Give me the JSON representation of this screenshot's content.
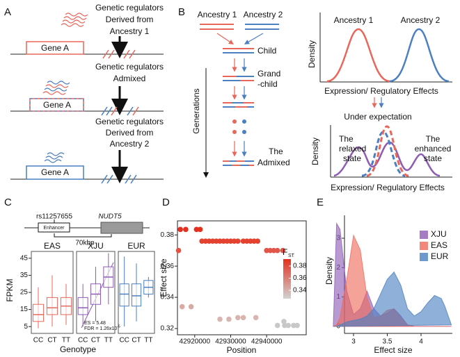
{
  "panels": {
    "A": {
      "label": "A",
      "rows": [
        {
          "regulator_text": [
            "Genetic regulators",
            "Derived from",
            "Ancestry 1"
          ],
          "gene": "Gene A"
        },
        {
          "regulator_text": [
            "Genetic regulators",
            "Admixed"
          ],
          "gene": "Gene A"
        },
        {
          "regulator_text": [
            "Genetic regulators",
            "Derived from",
            "Ancestry 2"
          ],
          "gene": "Gene A"
        }
      ]
    },
    "B": {
      "label": "B",
      "ancestry_1": "Ancestry 1",
      "ancestry_2": "Ancestry 2",
      "child": "Child",
      "grandchild": [
        "Grand",
        "-child"
      ],
      "admixed": [
        "The",
        "Admixed"
      ],
      "generations": "Generations",
      "density_top": {
        "ylabel": "Density",
        "xlabel": "Expression/ Regulatory Effects",
        "peak_1": "Ancestry 1",
        "peak_2": "Ancestry 2"
      },
      "density_bottom": {
        "title": "Under expectation",
        "ylabel": "Density",
        "xlabel": "Expression/ Regulatory Effects",
        "left": [
          "The",
          "relaxed",
          "state"
        ],
        "right": [
          "The",
          "enhanced",
          "state"
        ]
      }
    },
    "C": {
      "label": "C",
      "snp": "rs11257655",
      "enhancer": "Enhancer",
      "gene": "NUDT5",
      "distance": "70kbp"
    },
    "D": {
      "label": "D"
    },
    "E": {
      "label": "E"
    }
  },
  "chart_data": [
    {
      "type": "box",
      "ylabel": "FPKM",
      "xlabel": "Genotype",
      "ylim": [
        1,
        49
      ],
      "yticks": [
        5,
        15,
        25,
        35,
        45
      ],
      "categories": [
        "CC",
        "CT",
        "TT"
      ],
      "groups": [
        {
          "name": "EAS",
          "color": "#e8675a",
          "whisker_low": [
            4,
            5,
            6
          ],
          "q1": [
            8,
            12,
            12
          ],
          "median": [
            12,
            16,
            17
          ],
          "q3": [
            18,
            22,
            22
          ],
          "whisker_high": [
            28,
            35,
            30
          ]
        },
        {
          "name": "XJU",
          "color": "#8e5bb5",
          "whisker_low": [
            5,
            8,
            18
          ],
          "q1": [
            12,
            18,
            28
          ],
          "median": [
            16,
            24,
            34
          ],
          "q3": [
            22,
            30,
            40
          ],
          "whisker_high": [
            30,
            40,
            48
          ]
        },
        {
          "name": "EUR",
          "color": "#4a7fc0",
          "whisker_low": [
            5,
            8,
            22
          ],
          "q1": [
            17,
            17,
            24
          ],
          "median": [
            24,
            23,
            28
          ],
          "q3": [
            30,
            30,
            32
          ],
          "whisker_high": [
            46,
            42,
            34
          ]
        }
      ],
      "annotations": [
        "ES = 5.48",
        "FDR = 1.26x10"
      ],
      "annotation_superscript": "-5"
    },
    {
      "type": "scatter",
      "ylabel": "Effect size",
      "xlabel": "Position",
      "xlim": [
        42915200,
        42951000
      ],
      "ylim": [
        0.316,
        0.389
      ],
      "xticks": [
        42920000,
        42930000,
        42940000
      ],
      "yticks": [
        0.32,
        0.34,
        0.36,
        0.38
      ],
      "x": [
        42916000,
        42917500,
        42920500,
        42921500,
        42915500,
        42922000,
        42923000,
        42924000,
        42925000,
        42926000,
        42927000,
        42928000,
        42929000,
        42930000,
        42931000,
        42932000,
        42933500,
        42934500,
        42935500,
        42936500,
        42937500,
        42940000,
        42941000,
        42942000,
        42943000,
        42944500,
        42916500,
        42919000,
        42927000,
        42929500,
        42932000,
        42933500,
        42937000,
        42943000,
        42944800,
        42945000,
        42946000,
        42947500,
        42948500
      ],
      "values": [
        0.3835,
        0.3835,
        0.3835,
        0.3835,
        0.37,
        0.376,
        0.376,
        0.376,
        0.376,
        0.376,
        0.376,
        0.376,
        0.376,
        0.376,
        0.376,
        0.376,
        0.376,
        0.376,
        0.376,
        0.376,
        0.376,
        0.37,
        0.37,
        0.37,
        0.37,
        0.37,
        0.334,
        0.334,
        0.326,
        0.326,
        0.327,
        0.327,
        0.327,
        0.322,
        0.3245,
        0.322,
        0.322,
        0.322,
        0.322
      ],
      "point_colors": [
        "#e3301f",
        "#e3301f",
        "#e3301f",
        "#e3301f",
        "#e8503f",
        "#e5412f",
        "#e5412f",
        "#e5412f",
        "#e5412f",
        "#e5412f",
        "#e5412f",
        "#e5412f",
        "#e5412f",
        "#e5412f",
        "#e5412f",
        "#e5412f",
        "#e5412f",
        "#e5412f",
        "#e5412f",
        "#e5412f",
        "#e5412f",
        "#e2564a",
        "#e2564a",
        "#e2564a",
        "#e2564a",
        "#e2564a",
        "#d9a9a3",
        "#d9a9a3",
        "#d8b5b0",
        "#d8b5b0",
        "#d8b5b0",
        "#d8b5b0",
        "#d8b5b0",
        "#c8c8c8",
        "#c8c8c8",
        "#c8c8c8",
        "#c8c8c8",
        "#c8c8c8",
        "#c8c8c8"
      ],
      "colorbar": {
        "title": "F",
        "title_sub": "ST",
        "lim": [
          0.3263,
          0.3914
        ],
        "ticks": [
          0.34,
          0.36,
          0.38
        ],
        "colors": [
          "#d2d2d2",
          "#e3301f"
        ]
      }
    },
    {
      "type": "area",
      "ylabel": "Density",
      "xlabel": "Effect size",
      "xlim": [
        2.866,
        4.464
      ],
      "ylim": [
        -0.24,
        3.78
      ],
      "xticks": [
        3.0,
        3.5,
        4.0
      ],
      "yticks": [
        0,
        1,
        2,
        3
      ],
      "x": [
        2.7,
        2.75,
        2.8,
        2.9,
        3.0,
        3.1,
        3.2,
        3.3,
        3.4,
        3.5,
        3.6,
        3.7,
        3.8,
        3.9,
        4.0,
        4.1,
        4.2,
        4.3,
        4.35,
        4.45
      ],
      "series": [
        {
          "name": "XJU",
          "color": "#8e5bb5",
          "values": [
            0,
            3.5,
            3.3,
            1.2,
            0.4,
            0.6,
            1.2,
            0.6,
            0.35,
            0.45,
            0.6,
            0.35,
            0.05,
            0,
            0,
            0,
            0,
            0,
            0,
            0
          ]
        },
        {
          "name": "EAS",
          "color": "#ef6a5a",
          "values": [
            0,
            0.05,
            0.3,
            1.6,
            3.1,
            2.6,
            1.0,
            0.3,
            0.35,
            0.55,
            0.6,
            0.3,
            0.05,
            0,
            0,
            0,
            0,
            0,
            0,
            0
          ]
        },
        {
          "name": "EUR",
          "color": "#4a7fc0",
          "values": [
            0,
            0,
            0.05,
            0.15,
            0.2,
            0.25,
            0.35,
            0.6,
            1.1,
            1.6,
            1.85,
            1.4,
            0.6,
            0.35,
            0.5,
            0.8,
            1.05,
            0.95,
            0.7,
            0.05
          ]
        }
      ]
    }
  ]
}
